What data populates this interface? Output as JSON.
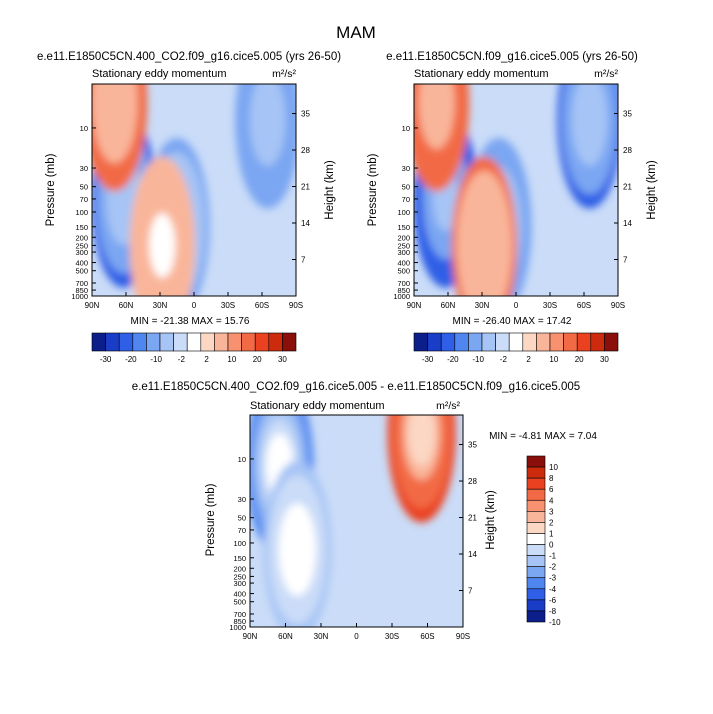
{
  "figure_title": "MAM",
  "chart_data": [
    {
      "type": "heatmap",
      "title": "e.e11.E1850C5CN.400_CO2.f09_g16.cice5.005 (yrs 26-50)",
      "subtitle": "Stationary eddy momentum",
      "units": "m²/s²",
      "xlabel": "",
      "ylabel": "Pressure (mb)",
      "ylabel_right": "Height (km)",
      "x_ticks": [
        "90N",
        "60N",
        "30N",
        "0",
        "30S",
        "60S",
        "90S"
      ],
      "y_ticks": [
        "10",
        "30",
        "50",
        "70",
        "100",
        "150",
        "200",
        "250",
        "300",
        "400",
        "500",
        "700",
        "850",
        "1000"
      ],
      "y_ticks_right": [
        "35",
        "28",
        "21",
        "14",
        "7"
      ],
      "ylim": [
        1000,
        3
      ],
      "stats": "MIN = -21.38   MAX = 15.76",
      "min": -21.38,
      "max": 15.76,
      "colorbar_labels": [
        "-30",
        "-20",
        "-10",
        "-2",
        "2",
        "10",
        "20",
        "30"
      ],
      "features": [
        {
          "lat": 62,
          "p": 70,
          "value": -21,
          "sign": "negative"
        },
        {
          "lat": 15,
          "p": 150,
          "value": -12,
          "sign": "negative"
        },
        {
          "lat": -65,
          "p": 8,
          "value": -18,
          "sign": "negative"
        },
        {
          "lat": 70,
          "p": 5,
          "value": 15,
          "sign": "positive"
        },
        {
          "lat": 28,
          "p": 250,
          "value": 10,
          "sign": "positive"
        }
      ]
    },
    {
      "type": "heatmap",
      "title": "e.e11.E1850C5CN.f09_g16.cice5.005 (yrs 26-50)",
      "subtitle": "Stationary eddy momentum",
      "units": "m²/s²",
      "xlabel": "",
      "ylabel": "Pressure (mb)",
      "ylabel_right": "Height (km)",
      "x_ticks": [
        "90N",
        "60N",
        "30N",
        "0",
        "30S",
        "60S",
        "90S"
      ],
      "y_ticks": [
        "10",
        "30",
        "50",
        "70",
        "100",
        "150",
        "200",
        "250",
        "300",
        "400",
        "500",
        "700",
        "850",
        "1000"
      ],
      "y_ticks_right": [
        "35",
        "28",
        "21",
        "14",
        "7"
      ],
      "ylim": [
        1000,
        3
      ],
      "stats": "MIN = -26.40   MAX = 17.42",
      "min": -26.4,
      "max": 17.42,
      "colorbar_labels": [
        "-30",
        "-20",
        "-10",
        "-2",
        "2",
        "10",
        "20",
        "30"
      ],
      "features": [
        {
          "lat": 62,
          "p": 70,
          "value": -26,
          "sign": "negative"
        },
        {
          "lat": 15,
          "p": 150,
          "value": -14,
          "sign": "negative"
        },
        {
          "lat": -65,
          "p": 8,
          "value": -24,
          "sign": "negative"
        },
        {
          "lat": 70,
          "p": 5,
          "value": 17,
          "sign": "positive"
        },
        {
          "lat": 28,
          "p": 250,
          "value": 11,
          "sign": "positive"
        }
      ]
    },
    {
      "type": "heatmap",
      "title": "e.e11.E1850C5CN.400_CO2.f09_g16.cice5.005 - e.e11.E1850C5CN.f09_g16.cice5.005",
      "subtitle": "Stationary eddy momentum",
      "units": "m²/s²",
      "xlabel": "",
      "ylabel": "Pressure (mb)",
      "ylabel_right": "Height (km)",
      "x_ticks": [
        "90N",
        "60N",
        "30N",
        "0",
        "30S",
        "60S",
        "90S"
      ],
      "y_ticks": [
        "10",
        "30",
        "50",
        "70",
        "100",
        "150",
        "200",
        "250",
        "300",
        "400",
        "500",
        "700",
        "850",
        "1000"
      ],
      "y_ticks_right": [
        "35",
        "28",
        "21",
        "14",
        "7"
      ],
      "ylim": [
        1000,
        3
      ],
      "stats": "MIN = -4.81   MAX =  7.04",
      "min": -4.81,
      "max": 7.04,
      "colorbar_labels": [
        "10",
        "8",
        "6",
        "4",
        "3",
        "2",
        "1",
        "0",
        "-1",
        "-2",
        "-3",
        "-4",
        "-6",
        "-8",
        "-10"
      ],
      "features": [
        {
          "lat": 65,
          "p": 12,
          "value": -4.8,
          "sign": "negative"
        },
        {
          "lat": -55,
          "p": 5,
          "value": 7.0,
          "sign": "positive"
        },
        {
          "lat": 50,
          "p": 120,
          "value": -2,
          "sign": "negative"
        }
      ]
    }
  ],
  "colors": {
    "colorbar_top": [
      "#0b1e8a",
      "#1a3dc8",
      "#2f5fe6",
      "#4f86f0",
      "#7aa6f2",
      "#a6c4f5",
      "#cadcf8",
      "#ffffff",
      "#fbd7c4",
      "#f9b59a",
      "#f79170",
      "#f26a45",
      "#ea4220",
      "#cc2c0d",
      "#8a0f0a"
    ],
    "colorbar_diff": [
      "#8a0f0a",
      "#cc2c0d",
      "#ea4220",
      "#f26a45",
      "#f79170",
      "#f9b59a",
      "#fbd7c4",
      "#ffffff",
      "#cadcf8",
      "#a6c4f5",
      "#7aa6f2",
      "#4f86f0",
      "#2f5fe6",
      "#1a3dc8",
      "#0b1e8a"
    ]
  }
}
